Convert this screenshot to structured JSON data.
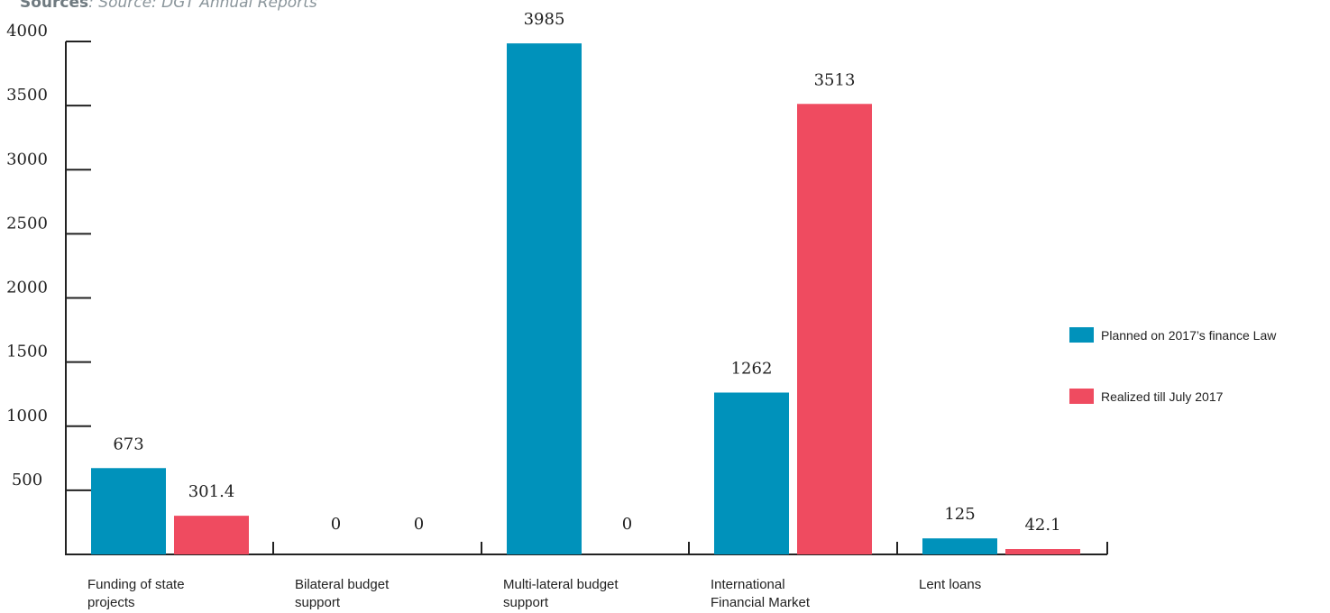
{
  "source": {
    "label": "Sources",
    "text": ": Source: DGT Annual Reports"
  },
  "colors": {
    "planned": "#0092bb",
    "realized": "#ef4b60",
    "axis": "#222222"
  },
  "chart_data": {
    "type": "bar",
    "categories": [
      [
        "Funding of state",
        "projects"
      ],
      [
        "Bilateral budget",
        "support"
      ],
      [
        "Multi-lateral budget",
        "support"
      ],
      [
        "International",
        "Financial Market"
      ],
      [
        "Lent loans"
      ]
    ],
    "series": [
      {
        "name": "Planned on 2017’s finance Law",
        "values": [
          673,
          0,
          3985,
          1262,
          125
        ],
        "labels": [
          "673",
          "0",
          "3985",
          "1262",
          "125"
        ]
      },
      {
        "name": "Realized till July 2017",
        "values": [
          301.4,
          0,
          0,
          3513,
          42.1
        ],
        "labels": [
          "301.4",
          "0",
          "0",
          "3513",
          "42.1"
        ]
      }
    ],
    "yticks": [
      500,
      1000,
      1500,
      2000,
      2500,
      3000,
      3500,
      4000
    ],
    "ylim": [
      0,
      4000
    ],
    "grid": false,
    "legend_position": "right"
  }
}
